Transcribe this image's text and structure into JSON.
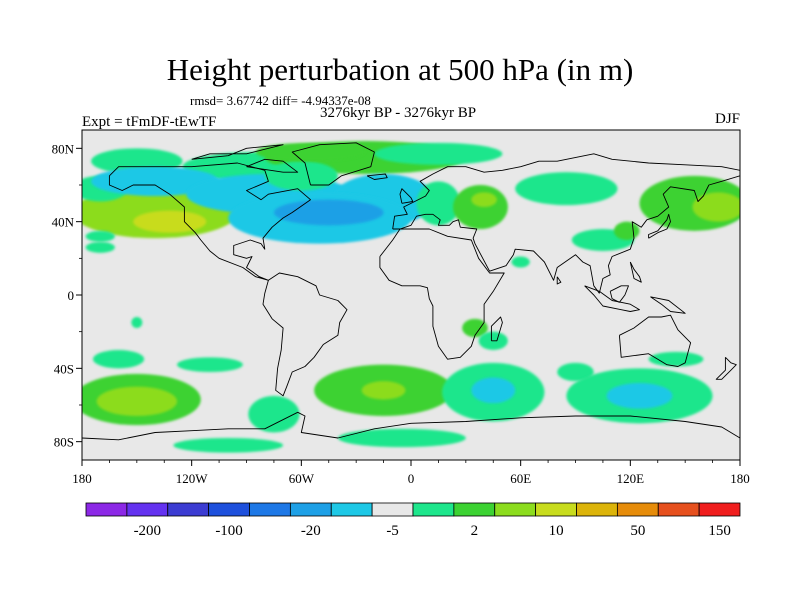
{
  "title": "Height perturbation at 500 hPa (in m)",
  "stats": "rmsd= 3.67742 diff= -4.94337e-08",
  "period": "3276kyr BP - 3276kyr BP",
  "experiment": "Expt = tFmDF-tEwTF",
  "season": "DJF",
  "map": {
    "projection": "cylindrical-equidistant",
    "lon_range": [
      -180,
      180
    ],
    "lat_range": [
      -90,
      90
    ],
    "background_color": "#e8e8e8",
    "x_ticks": [
      {
        "lon": -180,
        "label": "180"
      },
      {
        "lon": -120,
        "label": "120W"
      },
      {
        "lon": -60,
        "label": "60W"
      },
      {
        "lon": 0,
        "label": "0"
      },
      {
        "lon": 60,
        "label": "60E"
      },
      {
        "lon": 120,
        "label": "120E"
      },
      {
        "lon": 180,
        "label": "180"
      }
    ],
    "y_ticks": [
      {
        "lat": 80,
        "label": "80N"
      },
      {
        "lat": 40,
        "label": "40N"
      },
      {
        "lat": 0,
        "label": "0"
      },
      {
        "lat": -40,
        "label": "40S"
      },
      {
        "lat": -80,
        "label": "80S"
      }
    ],
    "anomalies": [
      {
        "lon": -140,
        "lat": 45,
        "rlon": 45,
        "rlat": 14,
        "level": 2
      },
      {
        "lon": -132,
        "lat": 40,
        "rlon": 20,
        "rlat": 6,
        "level": 3
      },
      {
        "lon": -170,
        "lat": 32,
        "rlon": 8,
        "rlat": 3,
        "level": 0
      },
      {
        "lon": -150,
        "lat": 73,
        "rlon": 25,
        "rlat": 7,
        "level": 0
      },
      {
        "lon": -85,
        "lat": 70,
        "rlon": 40,
        "rlat": 8,
        "level": 0
      },
      {
        "lon": -25,
        "lat": 75,
        "rlon": 55,
        "rlat": 9,
        "level": 1
      },
      {
        "lon": 15,
        "lat": 77,
        "rlon": 35,
        "rlat": 6,
        "level": 0
      },
      {
        "lon": -170,
        "lat": 58,
        "rlon": 15,
        "rlat": 7,
        "level": 0
      },
      {
        "lon": -140,
        "lat": 62,
        "rlon": 35,
        "rlat": 8,
        "level": -1
      },
      {
        "lon": -78,
        "lat": 55,
        "rlon": 45,
        "rlat": 11,
        "level": -1
      },
      {
        "lon": -15,
        "lat": 52,
        "rlon": 28,
        "rlat": 14,
        "level": -1
      },
      {
        "lon": -50,
        "lat": 42,
        "rlon": 50,
        "rlat": 14,
        "level": -1
      },
      {
        "lon": -45,
        "lat": 45,
        "rlon": 30,
        "rlat": 7,
        "level": -2
      },
      {
        "lon": 15,
        "lat": 50,
        "rlon": 12,
        "rlat": 12,
        "level": 0
      },
      {
        "lon": 38,
        "lat": 48,
        "rlon": 15,
        "rlat": 12,
        "level": 1
      },
      {
        "lon": 40,
        "lat": 52,
        "rlon": 7,
        "rlat": 4,
        "level": 2
      },
      {
        "lon": 85,
        "lat": 58,
        "rlon": 28,
        "rlat": 9,
        "level": 0
      },
      {
        "lon": 105,
        "lat": 30,
        "rlon": 17,
        "rlat": 6,
        "level": 0
      },
      {
        "lon": 118,
        "lat": 35,
        "rlon": 7,
        "rlat": 5,
        "level": 1
      },
      {
        "lon": 60,
        "lat": 18,
        "rlon": 5,
        "rlat": 3,
        "level": 0
      },
      {
        "lon": 155,
        "lat": 50,
        "rlon": 30,
        "rlat": 15,
        "level": 1
      },
      {
        "lon": 168,
        "lat": 48,
        "rlon": 14,
        "rlat": 8,
        "level": 2
      },
      {
        "lon": -170,
        "lat": 26,
        "rlon": 8,
        "rlat": 3,
        "level": 0
      },
      {
        "lon": -160,
        "lat": -35,
        "rlon": 14,
        "rlat": 5,
        "level": 0
      },
      {
        "lon": -150,
        "lat": -57,
        "rlon": 35,
        "rlat": 14,
        "level": 1
      },
      {
        "lon": -150,
        "lat": -58,
        "rlon": 22,
        "rlat": 8,
        "level": 2
      },
      {
        "lon": -110,
        "lat": -38,
        "rlon": 18,
        "rlat": 4,
        "level": 0
      },
      {
        "lon": -150,
        "lat": -15,
        "rlon": 3,
        "rlat": 3,
        "level": 0
      },
      {
        "lon": -75,
        "lat": -65,
        "rlon": 14,
        "rlat": 10,
        "level": 0
      },
      {
        "lon": -15,
        "lat": -52,
        "rlon": 38,
        "rlat": 14,
        "level": 1
      },
      {
        "lon": -15,
        "lat": -52,
        "rlon": 12,
        "rlat": 5,
        "level": 2
      },
      {
        "lon": 35,
        "lat": -18,
        "rlon": 7,
        "rlat": 5,
        "level": 1
      },
      {
        "lon": 45,
        "lat": -25,
        "rlon": 8,
        "rlat": 5,
        "level": 0
      },
      {
        "lon": 45,
        "lat": -53,
        "rlon": 28,
        "rlat": 16,
        "level": 0
      },
      {
        "lon": 45,
        "lat": -52,
        "rlon": 12,
        "rlat": 7,
        "level": -1
      },
      {
        "lon": 90,
        "lat": -42,
        "rlon": 10,
        "rlat": 5,
        "level": 0
      },
      {
        "lon": 125,
        "lat": -55,
        "rlon": 40,
        "rlat": 15,
        "level": 0
      },
      {
        "lon": 125,
        "lat": -55,
        "rlon": 18,
        "rlat": 7,
        "level": -1
      },
      {
        "lon": 145,
        "lat": -35,
        "rlon": 15,
        "rlat": 4,
        "level": 0
      },
      {
        "lon": -5,
        "lat": -78,
        "rlon": 35,
        "rlat": 5,
        "level": 0
      },
      {
        "lon": -100,
        "lat": -82,
        "rlon": 30,
        "rlat": 4,
        "level": 0
      },
      {
        "lon": -60,
        "lat": 65,
        "rlon": 20,
        "rlat": 8,
        "level": 0
      },
      {
        "lon": -55,
        "lat": 78,
        "rlon": 30,
        "rlat": 5,
        "level": 1
      }
    ]
  },
  "legend": {
    "colors": [
      "#8c28e6",
      "#6432f0",
      "#3c3cd2",
      "#1e50dc",
      "#1e78e6",
      "#1ea0e6",
      "#1ec8e6",
      "#e8e8e8",
      "#1ee68c",
      "#3cd232",
      "#8cdc1e",
      "#c8dc1e",
      "#dcb40a",
      "#e68c0a",
      "#e6501e",
      "#f01e1e"
    ],
    "labels": [
      "-200",
      "-100",
      "-20",
      "-5",
      "2",
      "10",
      "50",
      "150"
    ]
  }
}
